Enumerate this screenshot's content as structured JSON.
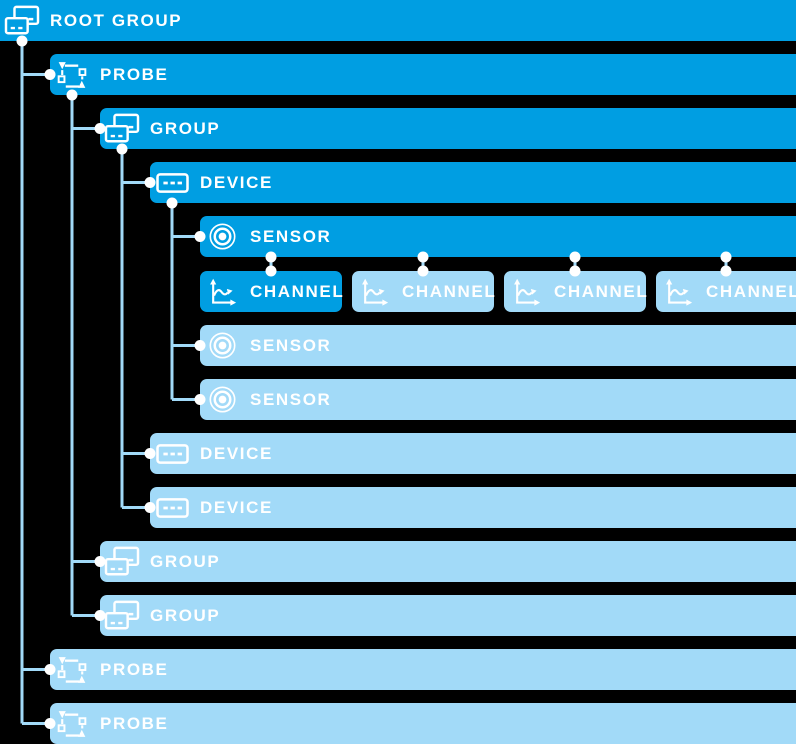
{
  "palette": {
    "background": "#000000",
    "bright": "#009ee2",
    "light": "#a2daf8",
    "text": "#ffffff",
    "line": "#a2daf8",
    "dot": "#ffffff"
  },
  "nodes": [
    {
      "id": "root-group",
      "label": "ROOT GROUP",
      "icon": "group-icon",
      "variant": "bright",
      "row": 0,
      "level": 0
    },
    {
      "id": "probe-1",
      "label": "PROBE",
      "icon": "probe-icon",
      "variant": "bright",
      "row": 1,
      "level": 1
    },
    {
      "id": "group-1",
      "label": "GROUP",
      "icon": "group-icon",
      "variant": "bright",
      "row": 2,
      "level": 2
    },
    {
      "id": "device-1",
      "label": "DEVICE",
      "icon": "device-icon",
      "variant": "bright",
      "row": 3,
      "level": 3
    },
    {
      "id": "sensor-1",
      "label": "SENSOR",
      "icon": "sensor-icon",
      "variant": "bright",
      "row": 4,
      "level": 4
    },
    {
      "id": "channel-1",
      "label": "CHANNEL",
      "icon": "channel-icon",
      "variant": "bright",
      "row": 5,
      "level": 4,
      "col": 0
    },
    {
      "id": "channel-2",
      "label": "CHANNEL",
      "icon": "channel-icon",
      "variant": "light",
      "row": 5,
      "level": 4,
      "col": 1
    },
    {
      "id": "channel-3",
      "label": "CHANNEL",
      "icon": "channel-icon",
      "variant": "light",
      "row": 5,
      "level": 4,
      "col": 2
    },
    {
      "id": "channel-4",
      "label": "CHANNEL",
      "icon": "channel-icon",
      "variant": "light",
      "row": 5,
      "level": 4,
      "col": 3
    },
    {
      "id": "sensor-2",
      "label": "SENSOR",
      "icon": "sensor-icon",
      "variant": "light",
      "row": 6,
      "level": 4
    },
    {
      "id": "sensor-3",
      "label": "SENSOR",
      "icon": "sensor-icon",
      "variant": "light",
      "row": 7,
      "level": 4
    },
    {
      "id": "device-2",
      "label": "DEVICE",
      "icon": "device-icon",
      "variant": "light",
      "row": 8,
      "level": 3
    },
    {
      "id": "device-3",
      "label": "DEVICE",
      "icon": "device-icon",
      "variant": "light",
      "row": 9,
      "level": 3
    },
    {
      "id": "group-2",
      "label": "GROUP",
      "icon": "group-icon",
      "variant": "light",
      "row": 10,
      "level": 2
    },
    {
      "id": "group-3",
      "label": "GROUP",
      "icon": "group-icon",
      "variant": "light",
      "row": 11,
      "level": 2
    },
    {
      "id": "probe-2",
      "label": "PROBE",
      "icon": "probe-icon",
      "variant": "light",
      "row": 12,
      "level": 1
    },
    {
      "id": "probe-3",
      "label": "PROBE",
      "icon": "probe-icon",
      "variant": "light",
      "row": 13,
      "level": 1
    }
  ],
  "links": [
    {
      "parent": "root-group",
      "children": [
        "probe-1",
        "probe-2",
        "probe-3"
      ],
      "style": "elbow"
    },
    {
      "parent": "probe-1",
      "children": [
        "group-1",
        "group-2",
        "group-3"
      ],
      "style": "elbow"
    },
    {
      "parent": "group-1",
      "children": [
        "device-1",
        "device-2",
        "device-3"
      ],
      "style": "elbow"
    },
    {
      "parent": "device-1",
      "children": [
        "sensor-1",
        "sensor-2",
        "sensor-3"
      ],
      "style": "elbow"
    },
    {
      "parent": "sensor-1",
      "children": [
        "channel-1",
        "channel-2",
        "channel-3",
        "channel-4"
      ],
      "style": "drop"
    }
  ]
}
